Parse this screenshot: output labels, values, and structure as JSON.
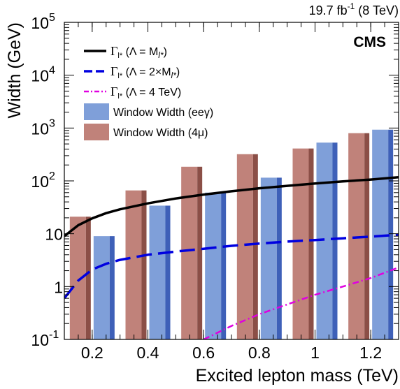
{
  "chart_data": {
    "type": "bar",
    "title": "",
    "xlabel": "Excited lepton mass (TeV)",
    "ylabel": "Width (GeV)",
    "xlim": [
      0.1,
      1.3
    ],
    "ylim": [
      0.1,
      100000
    ],
    "yscale": "log",
    "grid": false,
    "legend_position": "top-left",
    "top_right_label": {
      "value": "19.7 fb",
      "sup": "-1",
      "suffix": " (8 TeV)"
    },
    "experiment_label": "CMS",
    "x_ticks": [
      {
        "value": 0.2,
        "label": "0.2"
      },
      {
        "value": 0.4,
        "label": "0.4"
      },
      {
        "value": 0.6,
        "label": "0.6"
      },
      {
        "value": 0.8,
        "label": "0.8"
      },
      {
        "value": 1.0,
        "label": "1"
      },
      {
        "value": 1.2,
        "label": "1.2"
      }
    ],
    "y_ticks": [
      {
        "value": 0.1,
        "base": "10",
        "sup": "-1"
      },
      {
        "value": 1,
        "base": "1",
        "sup": ""
      },
      {
        "value": 10,
        "base": "10",
        "sup": ""
      },
      {
        "value": 100,
        "base": "10",
        "sup": "2"
      },
      {
        "value": 1000,
        "base": "10",
        "sup": "3"
      },
      {
        "value": 10000,
        "base": "10",
        "sup": "4"
      },
      {
        "value": 100000,
        "base": "10",
        "sup": "5"
      }
    ],
    "categories": [
      0.2,
      0.4,
      0.6,
      0.8,
      1.0,
      1.2
    ],
    "bar_series": [
      {
        "name": "Window Width (4μ)",
        "color": "#c0827a",
        "dark": "#8b4f47",
        "offset": -1,
        "values": [
          21,
          66,
          185,
          320,
          410,
          800
        ]
      },
      {
        "name": "Window Width (eeγ)",
        "color": "#7f9fd9",
        "dark": "#3e60b8",
        "offset": 1,
        "values": [
          9,
          34,
          60,
          115,
          530,
          930
        ]
      }
    ],
    "line_series": [
      {
        "name": "Γl* (Λ = Ml*)",
        "color": "#000000",
        "dash": "",
        "width": 3.5,
        "x": [
          0.1,
          0.15,
          0.2,
          0.25,
          0.3,
          0.4,
          0.5,
          0.6,
          0.7,
          0.8,
          0.9,
          1.0,
          1.1,
          1.2,
          1.3
        ],
        "y": [
          9.0,
          14.5,
          19.5,
          24.5,
          29.0,
          37.5,
          46.5,
          55.0,
          63.5,
          72.5,
          80.5,
          89.0,
          98.0,
          106.0,
          117.0
        ]
      },
      {
        "name": "Γl* (Λ = 2×Ml*)",
        "color": "#0000e0",
        "dash": "22,9",
        "width": 3.5,
        "x": [
          0.1,
          0.15,
          0.2,
          0.25,
          0.3,
          0.4,
          0.5,
          0.6,
          0.7,
          0.8,
          0.9,
          1.0,
          1.1,
          1.2,
          1.3
        ],
        "y": [
          0.6,
          1.3,
          2.1,
          2.7,
          3.2,
          4.0,
          4.6,
          5.2,
          5.9,
          6.5,
          7.1,
          7.6,
          8.2,
          8.8,
          9.6
        ]
      },
      {
        "name": "Γl* (Λ = 4 TeV)",
        "color": "#e000e0",
        "dash": "9,4,2,4",
        "width": 2.5,
        "x": [
          0.6,
          0.7,
          0.8,
          0.9,
          1.0,
          1.1,
          1.2,
          1.3
        ],
        "y": [
          0.1,
          0.18,
          0.3,
          0.46,
          0.7,
          1.0,
          1.45,
          2.3
        ]
      }
    ],
    "legend": [
      {
        "kind": "line",
        "series": 0,
        "gamma": "Γ",
        "sub": "l*",
        "text": " (Λ = M",
        "text_sub": "l*",
        "text_end": ")"
      },
      {
        "kind": "line",
        "series": 1,
        "gamma": "Γ",
        "sub": "l*",
        "text": " (Λ = 2×M",
        "text_sub": "l*",
        "text_end": ")"
      },
      {
        "kind": "line",
        "series": 2,
        "gamma": "Γ",
        "sub": "l*",
        "text": " (Λ = 4 TeV)",
        "text_sub": "",
        "text_end": ""
      },
      {
        "kind": "box",
        "color": "#7f9fd9",
        "text": "Window Width (eeγ)"
      },
      {
        "kind": "box",
        "color": "#c0827a",
        "text": "Window Width (4μ)"
      }
    ]
  }
}
